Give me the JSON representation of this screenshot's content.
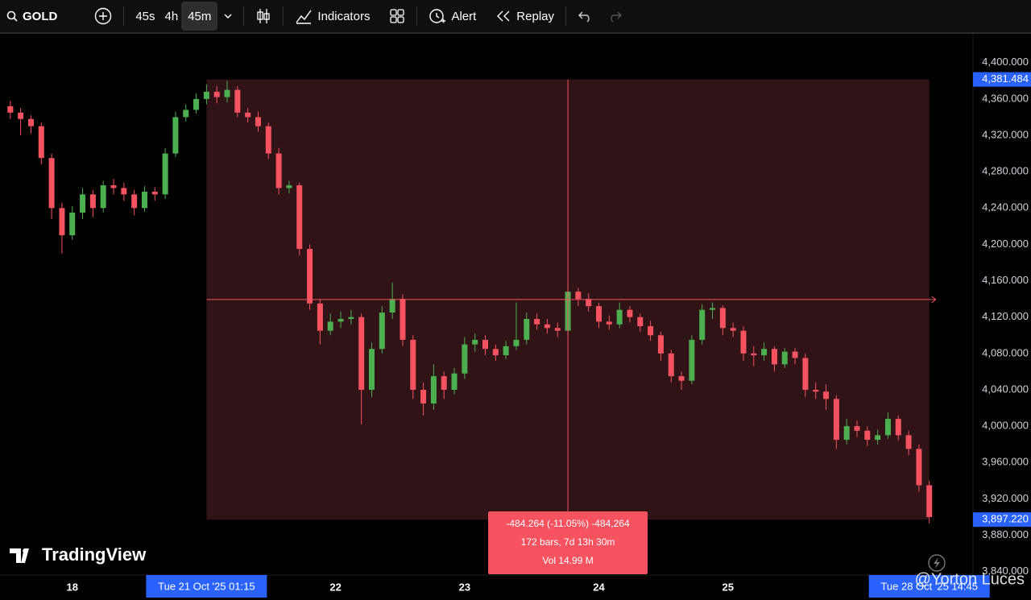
{
  "toolbar": {
    "symbol": "GOLD",
    "intervals": [
      "45s",
      "4h",
      "45m"
    ],
    "indicators": "Indicators",
    "alert": "Alert",
    "replay": "Replay"
  },
  "chart_data": {
    "type": "candlestick",
    "open": [
      4352,
      4345,
      4338,
      4330,
      4295,
      4240,
      4210,
      4235,
      4255,
      4240,
      4265,
      4262,
      4255,
      4240,
      4258,
      4255,
      4300,
      4340,
      4348,
      4360,
      4368,
      4362,
      4370,
      4345,
      4340,
      4330,
      4300,
      4262,
      4265,
      4195,
      4135,
      4105,
      4115,
      4118,
      4120,
      4040,
      4085,
      4125,
      4140,
      4095,
      4040,
      4025,
      4055,
      4040,
      4058,
      4090,
      4095,
      4085,
      4078,
      4088,
      4095,
      4118,
      4112,
      4108,
      4105,
      4148,
      4140,
      4132,
      4115,
      4112,
      4128,
      4120,
      4110,
      4100,
      4080,
      4055,
      4050,
      4095,
      4128,
      4130,
      4108,
      4105,
      4080,
      4078,
      4085,
      4068,
      4082,
      4075,
      4040,
      4038,
      4030,
      3985,
      4000,
      3995,
      3985,
      3990,
      4008,
      3990,
      3975,
      3935
    ],
    "high": [
      4358,
      4350,
      4342,
      4334,
      4300,
      4246,
      4242,
      4262,
      4260,
      4270,
      4272,
      4268,
      4260,
      4264,
      4263,
      4306,
      4346,
      4354,
      4366,
      4376,
      4374,
      4380,
      4374,
      4350,
      4346,
      4334,
      4306,
      4270,
      4268,
      4200,
      4140,
      4124,
      4126,
      4128,
      4124,
      4092,
      4132,
      4158,
      4145,
      4100,
      4048,
      4068,
      4060,
      4064,
      4098,
      4102,
      4100,
      4090,
      4094,
      4136,
      4125,
      4124,
      4118,
      4114,
      4155,
      4152,
      4146,
      4136,
      4122,
      4136,
      4132,
      4124,
      4116,
      4104,
      4084,
      4060,
      4100,
      4134,
      4136,
      4133,
      4114,
      4110,
      4088,
      4092,
      4088,
      4086,
      4086,
      4080,
      4048,
      4046,
      4034,
      4008,
      4006,
      4000,
      3996,
      4015,
      4012,
      3995,
      3980,
      3940
    ],
    "low": [
      4338,
      4320,
      4322,
      4288,
      4228,
      4190,
      4205,
      4228,
      4230,
      4235,
      4255,
      4248,
      4232,
      4236,
      4248,
      4250,
      4296,
      4335,
      4344,
      4354,
      4355,
      4356,
      4340,
      4334,
      4324,
      4294,
      4255,
      4256,
      4188,
      4128,
      4090,
      4100,
      4108,
      4112,
      4002,
      4032,
      4080,
      4118,
      4088,
      4030,
      4012,
      4018,
      4030,
      4035,
      4052,
      4082,
      4078,
      4072,
      4074,
      4084,
      4090,
      4106,
      4102,
      4098,
      4100,
      4132,
      4126,
      4108,
      4106,
      4108,
      4114,
      4104,
      4094,
      4072,
      4048,
      4040,
      4046,
      4090,
      4118,
      4100,
      4098,
      4072,
      4066,
      4072,
      4060,
      4064,
      4068,
      4032,
      4030,
      4018,
      3975,
      3980,
      3988,
      3978,
      3980,
      3986,
      3984,
      3968,
      3928,
      3893
    ],
    "close": [
      4345,
      4338,
      4330,
      4295,
      4240,
      4210,
      4235,
      4255,
      4240,
      4265,
      4262,
      4255,
      4240,
      4258,
      4255,
      4300,
      4340,
      4348,
      4360,
      4368,
      4362,
      4370,
      4345,
      4340,
      4330,
      4300,
      4262,
      4265,
      4195,
      4135,
      4105,
      4115,
      4118,
      4120,
      4040,
      4085,
      4125,
      4140,
      4095,
      4040,
      4025,
      4055,
      4040,
      4058,
      4090,
      4095,
      4085,
      4078,
      4088,
      4095,
      4118,
      4112,
      4108,
      4105,
      4148,
      4140,
      4132,
      4115,
      4112,
      4128,
      4120,
      4110,
      4100,
      4080,
      4055,
      4050,
      4095,
      4128,
      4130,
      4108,
      4105,
      4080,
      4078,
      4085,
      4068,
      4082,
      4075,
      4040,
      4038,
      4030,
      3985,
      4000,
      3995,
      3985,
      3990,
      4008,
      3990,
      3975,
      3935,
      3900
    ],
    "up_color": "#4caf50",
    "down_color": "#f7525f",
    "grid": false,
    "xlim": [
      -1,
      93
    ],
    "xticks": [
      {
        "value": 6,
        "label": "18"
      },
      {
        "value": 31.5,
        "label": "22"
      },
      {
        "value": 44,
        "label": "23"
      },
      {
        "value": 57,
        "label": "24"
      },
      {
        "value": 69.5,
        "label": "25"
      }
    ],
    "ylim": [
      3838,
      4429
    ],
    "yticks": [
      {
        "value": 3840,
        "label": "3,840.000"
      },
      {
        "value": 3880,
        "label": "3,880.000"
      },
      {
        "value": 3920,
        "label": "3,920.000"
      },
      {
        "value": 3960,
        "label": "3,960.000"
      },
      {
        "value": 4000,
        "label": "4,000.000"
      },
      {
        "value": 4040,
        "label": "4,040.000"
      },
      {
        "value": 4080,
        "label": "4,080.000"
      },
      {
        "value": 4120,
        "label": "4,120.000"
      },
      {
        "value": 4160,
        "label": "4,160.000"
      },
      {
        "value": 4200,
        "label": "4,200.000"
      },
      {
        "value": 4240,
        "label": "4,240.000"
      },
      {
        "value": 4280,
        "label": "4,280.000"
      },
      {
        "value": 4320,
        "label": "4,320.000"
      },
      {
        "value": 4360,
        "label": "4,360.000"
      },
      {
        "value": 4400,
        "label": "4,400.000"
      }
    ],
    "range_start": {
      "value": 19,
      "label": "Tue 21 Oct '25 01:15"
    },
    "range_end": {
      "value": 89,
      "label": "Tue 28 Oct '25 14:45"
    },
    "range_high": {
      "value": 4381.484,
      "label": "4,381.484"
    },
    "range_low": {
      "value": 3897.22,
      "label": "3,897.220"
    },
    "measure": [
      "-484.264 (-11.05%) -484,264",
      "172 bars, 7d 13h 30m",
      "Vol 14.99 M"
    ]
  },
  "watermark": {
    "logo": "TradingView",
    "user": "@Yorton Luces"
  }
}
